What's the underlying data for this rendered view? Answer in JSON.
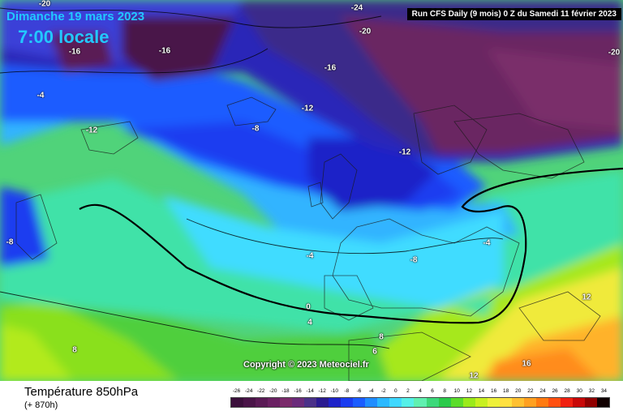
{
  "header": {
    "run_info": "Run CFS Daily (9 mois) 0 Z du Samedi 11 février 2023",
    "valid_date": "Dimanche 19 mars 2023",
    "valid_time": "7:00 locale"
  },
  "copyright": "Copyright © 2023 Meteociel.fr",
  "footer": {
    "title": "Température 850hPa",
    "forecast_offset": "(+ 870h)"
  },
  "map": {
    "field": "temperature 850hPa",
    "contour_labels": [
      "-20",
      "-24",
      "-20",
      "-20",
      "-16",
      "-16",
      "-16",
      "-12",
      "-4",
      "-12",
      "-8",
      "-12",
      "-8",
      "-8",
      "-4",
      "-4",
      "-8",
      "0",
      "4",
      "8",
      "8",
      "6",
      "12",
      "12",
      "16",
      "-12"
    ],
    "highlighted_isotherm": "0"
  },
  "legend": {
    "ticks": [
      "-26",
      "-24",
      "-22",
      "-20",
      "-18",
      "-16",
      "-14",
      "-12",
      "-10",
      "-8",
      "-6",
      "-4",
      "-2",
      "0",
      "2",
      "4",
      "6",
      "8",
      "10",
      "12",
      "14",
      "16",
      "18",
      "20",
      "22",
      "24",
      "26",
      "28",
      "30",
      "32",
      "34"
    ],
    "colors": [
      "#3b0f3b",
      "#4a1448",
      "#5a1a55",
      "#6a2062",
      "#7a2a6a",
      "#6a2a7a",
      "#4a3088",
      "#2a1a90",
      "#1e22c8",
      "#1a3cf0",
      "#1a5cff",
      "#1f8cff",
      "#2ab8ff",
      "#3fd8ff",
      "#55f0e8",
      "#60f0b0",
      "#3cd87a",
      "#2aca4a",
      "#5adc2a",
      "#9aea1a",
      "#c8f020",
      "#eef03a",
      "#ffe040",
      "#ffc030",
      "#ffa020",
      "#ff7a10",
      "#ff5010",
      "#f02010",
      "#c80808",
      "#900000",
      "#100000"
    ]
  }
}
